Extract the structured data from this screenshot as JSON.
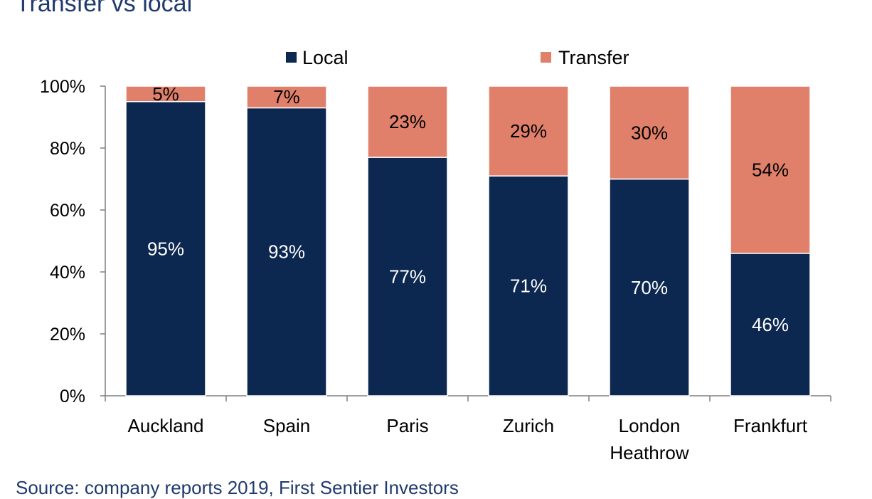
{
  "title": "Transfer vs local",
  "source": "Source: company reports 2019, First Sentier Investors",
  "colors": {
    "local": "#0c2750",
    "transfer": "#e0806a",
    "axis": "#7f7f7f"
  },
  "chart_data": {
    "type": "bar",
    "stacked": true,
    "categories": [
      [
        "Auckland"
      ],
      [
        "Spain"
      ],
      [
        "Paris"
      ],
      [
        "Zurich"
      ],
      [
        "London",
        "Heathrow"
      ],
      [
        "Frankfurt"
      ]
    ],
    "series": [
      {
        "name": "Local",
        "values": [
          95,
          93,
          77,
          71,
          70,
          46
        ],
        "labels": [
          "95%",
          "93%",
          "77%",
          "71%",
          "70%",
          "46%"
        ]
      },
      {
        "name": "Transfer",
        "values": [
          5,
          7,
          23,
          29,
          30,
          54
        ],
        "labels": [
          "5%",
          "7%",
          "23%",
          "29%",
          "30%",
          "54%"
        ]
      }
    ],
    "ylim": [
      0,
      100
    ],
    "yticks": [
      "0%",
      "20%",
      "40%",
      "60%",
      "80%",
      "100%"
    ],
    "legend": "top",
    "grid": false
  }
}
